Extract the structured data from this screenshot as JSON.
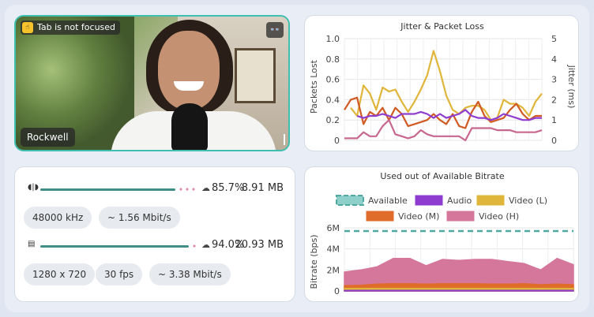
{
  "video": {
    "focus_badge": "Tab is not focused",
    "name": "Rockwell",
    "accent": "#3fbfb0"
  },
  "stats": {
    "audio": {
      "percent": "85.7%",
      "size": "8.91 MB",
      "fill": 0.857,
      "sample_rate": "48000 kHz",
      "bitrate": "~ 1.56 Mbit/s"
    },
    "video": {
      "percent": "94.0%",
      "size": "20.93 MB",
      "fill": 0.94,
      "resolution": "1280 x 720",
      "fps": "30 fps",
      "bitrate": "~ 3.38 Mbit/s"
    }
  },
  "charts": {
    "jitter": {
      "title": "Jitter & Packet Loss",
      "ylabel_left": "Packets Lost",
      "ylabel_right": "Jitter (ms)",
      "left_ticks": [
        "1.0",
        "0.8",
        "0.6",
        "0.4",
        "0.2",
        "0"
      ],
      "right_ticks": [
        "5",
        "4",
        "3",
        "2",
        "1",
        "0"
      ]
    },
    "bitrate": {
      "title": "Used out of Available Bitrate",
      "ylabel": "Bitrate (bps)",
      "y_ticks": [
        "6M",
        "4M",
        "2M",
        "0"
      ],
      "legend": [
        "Available",
        "Audio",
        "Video (L)",
        "Video (M)",
        "Video (H)"
      ]
    }
  },
  "chart_data": [
    {
      "type": "line",
      "title": "Jitter & Packet Loss",
      "ylabel": "Packets Lost",
      "y2label": "Jitter (ms)",
      "ylim": [
        0,
        1
      ],
      "y2lim": [
        0,
        5
      ],
      "grid": true,
      "x": [
        0,
        1,
        2,
        3,
        4,
        5,
        6,
        7,
        8,
        9,
        10,
        11,
        12,
        13,
        14,
        15,
        16,
        17,
        18,
        19,
        20,
        21,
        22,
        23,
        24,
        25,
        26,
        27,
        28,
        29,
        30,
        31
      ],
      "series": [
        {
          "color": "#e0b63a",
          "axis": "right",
          "values": [
            null,
            1.6,
            1.2,
            2.7,
            2.3,
            1.5,
            2.6,
            2.4,
            2.5,
            1.9,
            1.4,
            1.9,
            2.5,
            3.2,
            4.4,
            3.4,
            2.2,
            1.5,
            1.3,
            1.6,
            1.7,
            1.7,
            1.5,
            1.0,
            1.1,
            2.0,
            1.8,
            1.8,
            1.6,
            1.2,
            1.9,
            2.3
          ]
        },
        {
          "color": "#d05a22",
          "axis": "right",
          "values": [
            1.5,
            2.0,
            2.1,
            0.8,
            1.4,
            1.2,
            1.6,
            1.0,
            1.6,
            1.3,
            0.7,
            0.8,
            0.9,
            1.0,
            1.3,
            1.0,
            0.8,
            1.3,
            0.7,
            0.6,
            1.4,
            1.9,
            1.2,
            0.9,
            1.0,
            1.1,
            1.5,
            1.8,
            1.3,
            1.0,
            1.2,
            1.2
          ]
        },
        {
          "color": "#8e3ccf",
          "axis": "right",
          "values": [
            null,
            null,
            1.2,
            1.1,
            1.2,
            1.2,
            1.3,
            1.2,
            1.1,
            1.3,
            1.3,
            1.3,
            1.4,
            1.3,
            1.1,
            1.3,
            1.1,
            1.2,
            1.3,
            1.5,
            1.2,
            1.1,
            1.1,
            1.0,
            1.1,
            1.3,
            1.2,
            1.1,
            1.0,
            1.0,
            1.1,
            1.1
          ]
        },
        {
          "color": "#c8688f",
          "axis": "right",
          "values": [
            0.1,
            0.1,
            0.1,
            0.4,
            0.2,
            0.2,
            0.7,
            1.0,
            0.3,
            0.2,
            0.1,
            0.2,
            0.5,
            0.3,
            0.2,
            0.2,
            0.2,
            0.2,
            0.2,
            0.0,
            0.6,
            0.6,
            0.6,
            0.6,
            0.5,
            0.5,
            0.5,
            0.4,
            0.4,
            0.4,
            0.4,
            0.5
          ]
        }
      ]
    },
    {
      "type": "area",
      "title": "Used out of Available Bitrate",
      "ylabel": "Bitrate (bps)",
      "ylim": [
        0,
        6000000
      ],
      "grid": true,
      "legend_position": "top",
      "series": [
        {
          "name": "Available",
          "color": "#4fa8a2",
          "style": "dashed",
          "values": [
            5700000,
            5700000,
            5700000,
            5700000,
            5700000,
            5700000,
            5700000,
            5700000,
            5700000,
            5700000,
            5700000,
            5700000,
            5700000,
            5700000,
            5700000
          ]
        },
        {
          "name": "Audio",
          "color": "#8e3ccf",
          "values": [
            60000,
            60000,
            60000,
            60000,
            60000,
            60000,
            60000,
            60000,
            60000,
            60000,
            60000,
            60000,
            60000,
            60000,
            60000
          ]
        },
        {
          "name": "Video (L)",
          "color": "#e0b63a",
          "values": [
            250000,
            250000,
            250000,
            250000,
            250000,
            250000,
            250000,
            250000,
            250000,
            250000,
            250000,
            250000,
            250000,
            250000,
            250000
          ]
        },
        {
          "name": "Video (M)",
          "color": "#e06c2c",
          "values": [
            500000,
            550000,
            650000,
            700000,
            700000,
            650000,
            700000,
            700000,
            700000,
            650000,
            650000,
            700000,
            600000,
            650000,
            600000
          ]
        },
        {
          "name": "Video (H)",
          "color": "#d4779a",
          "values": [
            1800000,
            2000000,
            2300000,
            3100000,
            3100000,
            2400000,
            3000000,
            2900000,
            3000000,
            3000000,
            2800000,
            2600000,
            2000000,
            3100000,
            2500000
          ]
        }
      ]
    }
  ]
}
